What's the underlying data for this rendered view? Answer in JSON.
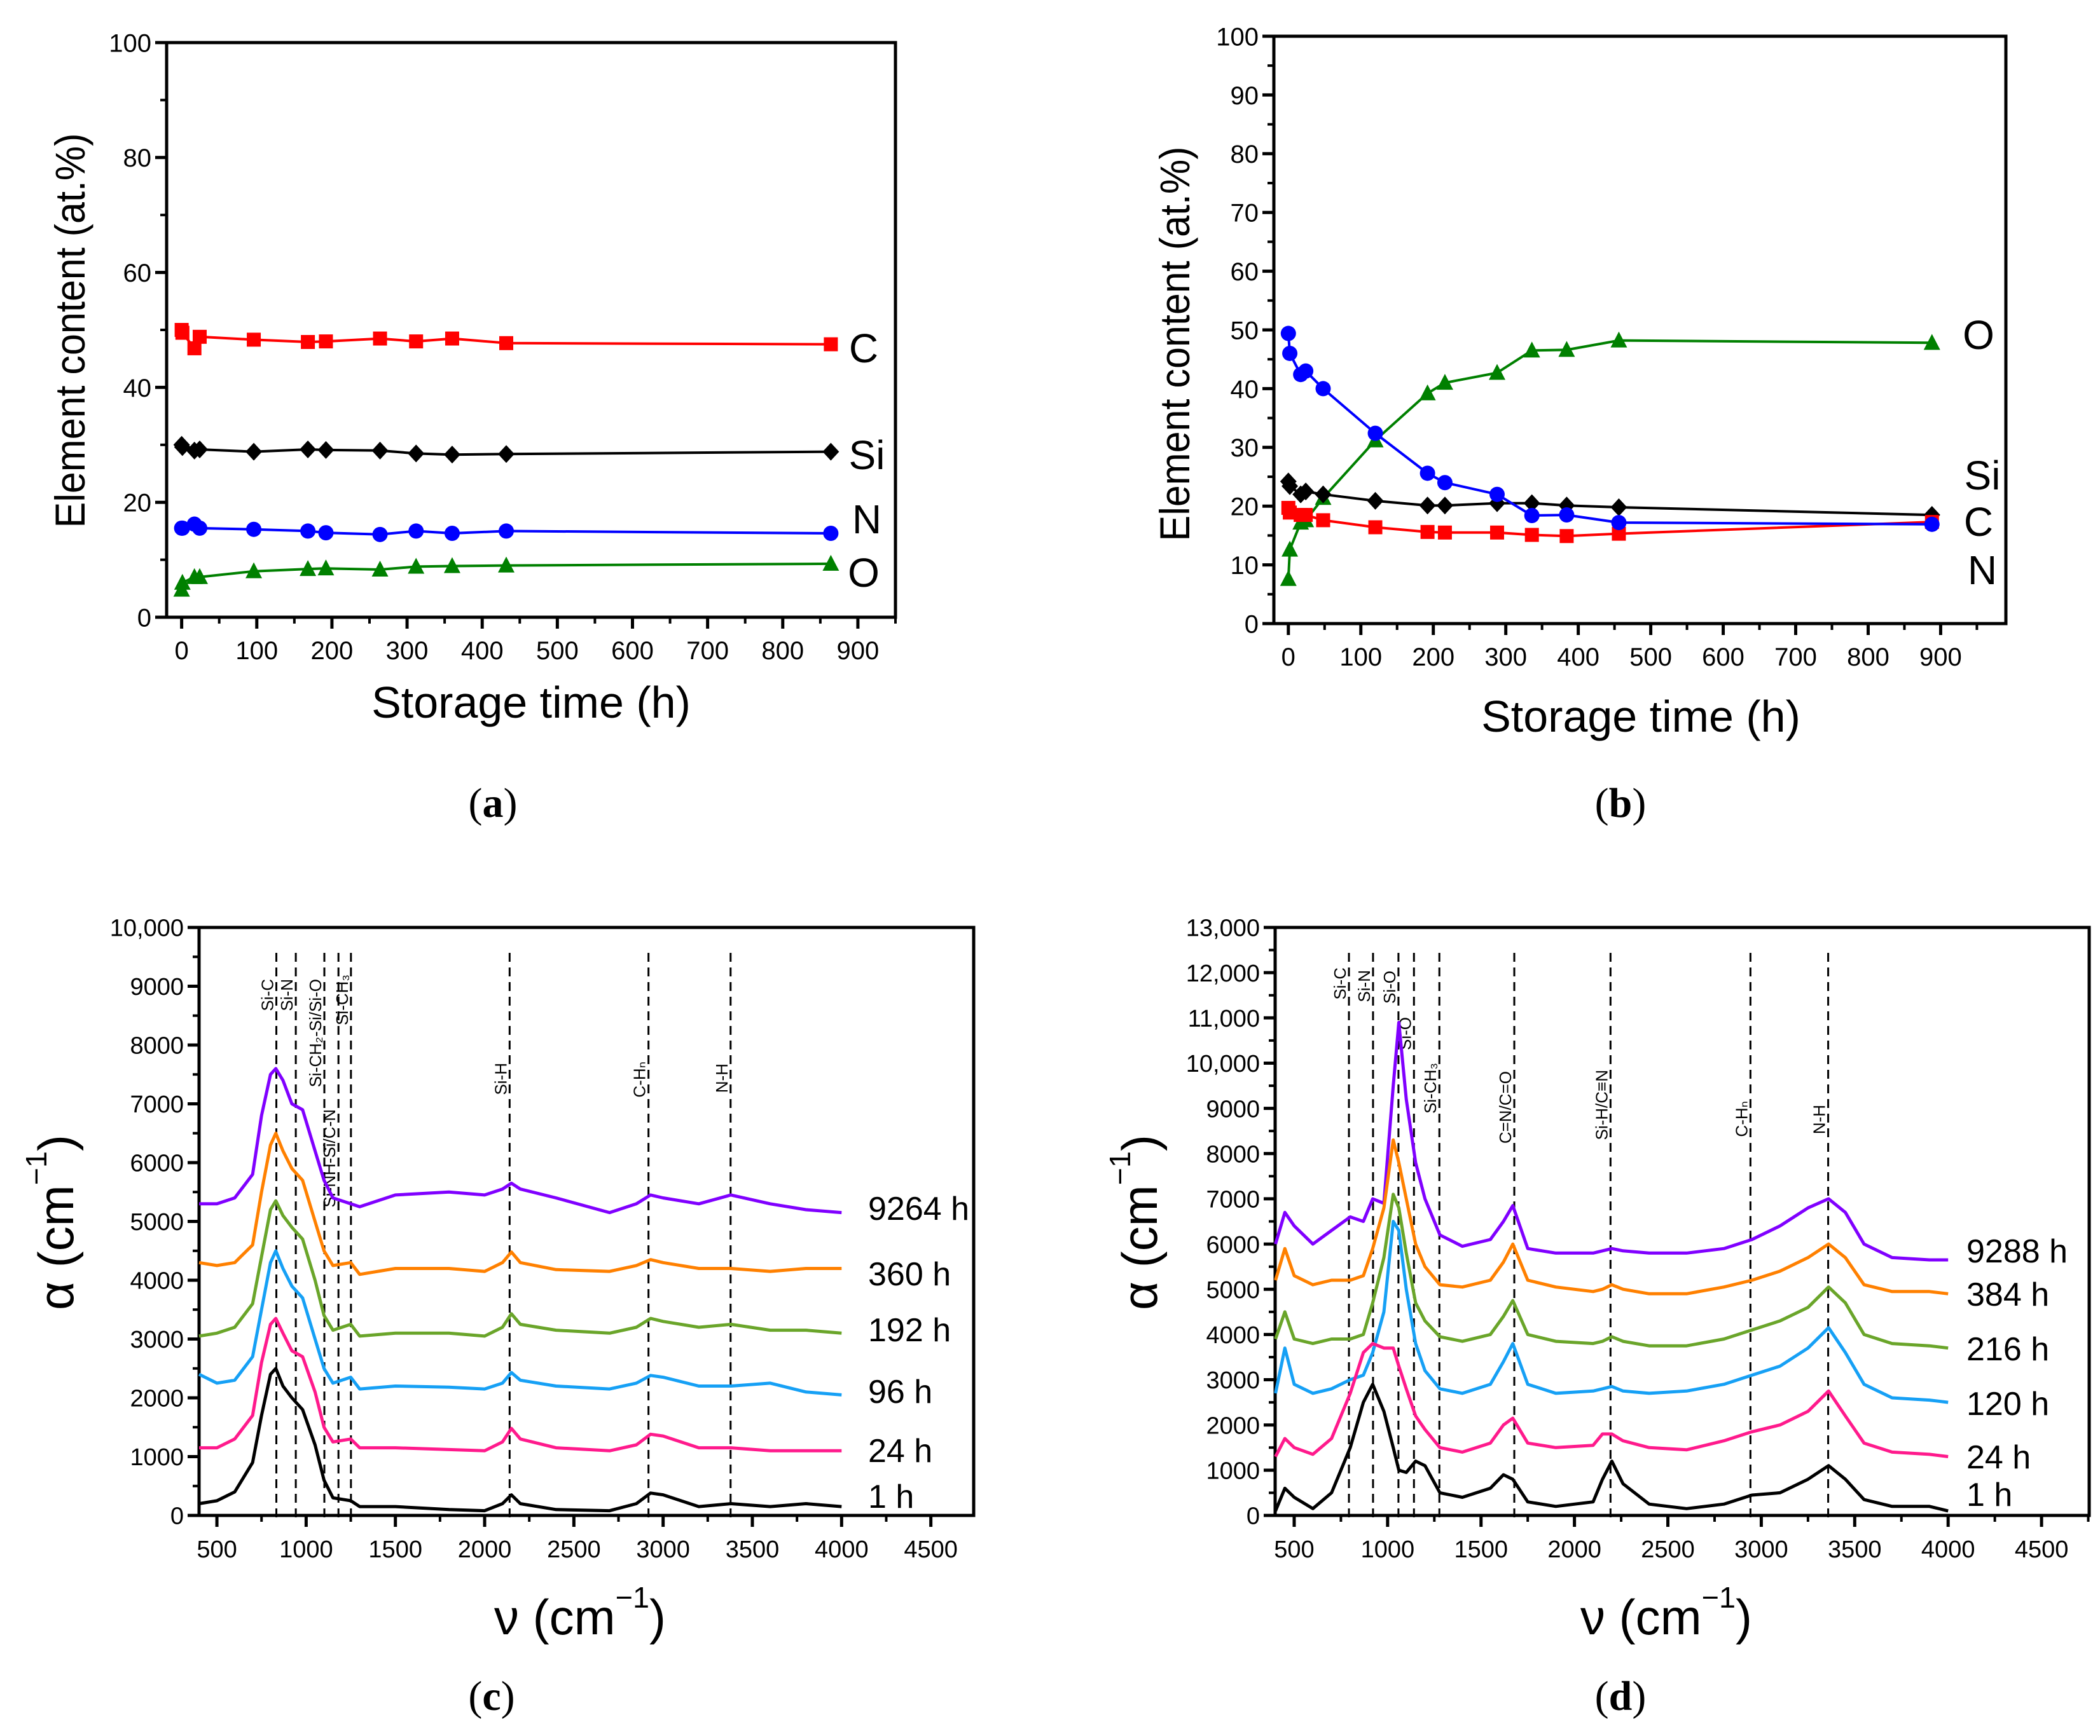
{
  "chart_data": [
    {
      "type": "line",
      "panel_label": [
        "(",
        "a",
        ")"
      ],
      "xlabel": "Storage time (h)",
      "ylabel": "Element content (at.%)",
      "xlim": [
        -20,
        950
      ],
      "ylim": [
        0,
        100
      ],
      "xticks": [
        0,
        100,
        200,
        300,
        400,
        500,
        600,
        700,
        800,
        900
      ],
      "xtick_labels": [
        "0",
        "100",
        "200",
        "300",
        "400",
        "500",
        "600",
        "700",
        "800",
        "900"
      ],
      "xminor": 50,
      "yticks": [
        0,
        20,
        40,
        60,
        80,
        100
      ],
      "ytick_labels": [
        "0",
        "20",
        "40",
        "60",
        "80",
        "100"
      ],
      "yminor": 10,
      "series": [
        {
          "name": "C",
          "color": "#ff0000",
          "marker": "square",
          "x": [
            0,
            1,
            17,
            24,
            96,
            168,
            192,
            264,
            312,
            360,
            432,
            864
          ],
          "y": [
            50.0,
            49.5,
            46.8,
            48.8,
            48.3,
            47.9,
            48.0,
            48.5,
            48.0,
            48.5,
            47.7,
            47.5
          ]
        },
        {
          "name": "Si",
          "color": "#000000",
          "marker": "diamond",
          "x": [
            0,
            1,
            17,
            24,
            96,
            168,
            192,
            264,
            312,
            360,
            432,
            864
          ],
          "y": [
            30.0,
            29.6,
            29.0,
            29.2,
            28.8,
            29.2,
            29.1,
            29.0,
            28.5,
            28.3,
            28.4,
            28.8
          ]
        },
        {
          "name": "N",
          "color": "#0000ff",
          "marker": "circle",
          "x": [
            0,
            1,
            17,
            24,
            96,
            168,
            192,
            264,
            312,
            360,
            432,
            864
          ],
          "y": [
            15.5,
            15.5,
            16.2,
            15.5,
            15.3,
            15.0,
            14.7,
            14.4,
            15.0,
            14.6,
            15.0,
            14.6
          ]
        },
        {
          "name": "O",
          "color": "#008000",
          "marker": "triangle",
          "x": [
            0,
            1,
            17,
            24,
            96,
            168,
            192,
            264,
            312,
            360,
            432,
            864
          ],
          "y": [
            4.8,
            6.0,
            7.0,
            7.0,
            8.0,
            8.4,
            8.5,
            8.3,
            8.8,
            8.9,
            9.0,
            9.3
          ]
        }
      ]
    },
    {
      "type": "line",
      "panel_label": [
        "(",
        "b",
        ")"
      ],
      "xlabel": "Storage time (h)",
      "ylabel": "Element content (at.%)",
      "xlim": [
        -20,
        990
      ],
      "ylim": [
        0,
        100
      ],
      "xticks": [
        0,
        100,
        200,
        300,
        400,
        500,
        600,
        700,
        800,
        900
      ],
      "xtick_labels": [
        "0",
        "100",
        "200",
        "300",
        "400",
        "500",
        "600",
        "700",
        "800",
        "900"
      ],
      "xminor": 50,
      "yticks": [
        0,
        10,
        20,
        30,
        40,
        50,
        60,
        70,
        80,
        90,
        100
      ],
      "ytick_labels": [
        "0",
        "10",
        "20",
        "30",
        "40",
        "50",
        "60",
        "70",
        "80",
        "90",
        "100"
      ],
      "yminor": 5,
      "series": [
        {
          "name": "O",
          "color": "#008000",
          "marker": "triangle",
          "x": [
            0,
            2,
            17,
            24,
            48,
            120,
            192,
            216,
            288,
            336,
            384,
            456,
            888
          ],
          "y": [
            7.6,
            12.6,
            17.2,
            17.6,
            21.4,
            31.2,
            39.2,
            41.0,
            42.7,
            46.5,
            46.6,
            48.2,
            47.8
          ]
        },
        {
          "name": "Si",
          "color": "#000000",
          "marker": "diamond",
          "x": [
            0,
            2,
            17,
            24,
            48,
            120,
            192,
            216,
            288,
            336,
            384,
            456,
            888
          ],
          "y": [
            24.2,
            23.4,
            22.0,
            22.5,
            22.0,
            20.9,
            20.1,
            20.1,
            20.5,
            20.5,
            20.1,
            19.8,
            18.5
          ]
        },
        {
          "name": "C",
          "color": "#ff0000",
          "marker": "square",
          "x": [
            0,
            2,
            17,
            24,
            48,
            120,
            192,
            216,
            288,
            336,
            384,
            456,
            888
          ],
          "y": [
            19.7,
            18.9,
            18.5,
            18.5,
            17.6,
            16.4,
            15.6,
            15.5,
            15.5,
            15.1,
            14.9,
            15.3,
            17.3
          ]
        },
        {
          "name": "N",
          "color": "#0000ff",
          "marker": "circle",
          "x": [
            0,
            2,
            17,
            24,
            48,
            120,
            192,
            216,
            288,
            336,
            384,
            456,
            888
          ],
          "y": [
            49.4,
            46.0,
            42.4,
            43.0,
            40.0,
            32.4,
            25.6,
            24.0,
            22.0,
            18.4,
            18.5,
            17.2,
            16.9
          ]
        }
      ]
    },
    {
      "type": "line",
      "panel_label": [
        "(",
        "c",
        ")"
      ],
      "xlabel_parts": [
        "ν (cm",
        "−1",
        ")"
      ],
      "ylabel_parts": [
        "α (cm",
        "−1",
        ")"
      ],
      "xlim": [
        400,
        4740
      ],
      "ylim": [
        0,
        10000
      ],
      "xticks": [
        500,
        1000,
        1500,
        2000,
        2500,
        3000,
        3500,
        4000,
        4500
      ],
      "xtick_labels": [
        "500",
        "1000",
        "1500",
        "2000",
        "2500",
        "3000",
        "3500",
        "4000",
        "4500"
      ],
      "xminor": 250,
      "yticks": [
        0,
        1000,
        2000,
        3000,
        4000,
        5000,
        6000,
        7000,
        8000,
        9000,
        10000
      ],
      "ytick_labels": [
        "0",
        "1000",
        "2000",
        "3000",
        "4000",
        "5000",
        "6000",
        "7000",
        "8000",
        "9000",
        "10,000"
      ],
      "yminor": 500,
      "bands": [
        {
          "label": "Si-C",
          "x": 833
        },
        {
          "label": "Si-N",
          "x": 942
        },
        {
          "label": "Si-CH₂-Si/Si-O",
          "x": 1102
        },
        {
          "label": "Si-NH-Si/C-N",
          "x": 1181
        },
        {
          "label": "Si-CH₃",
          "x": 1251
        },
        {
          "label": "Si-H",
          "x": 2140
        },
        {
          "label": "C-Hₙ",
          "x": 2918
        },
        {
          "label": "N-H",
          "x": 3378
        }
      ],
      "x": [
        400,
        500,
        600,
        700,
        750,
        800,
        830,
        870,
        920,
        980,
        1050,
        1100,
        1150,
        1250,
        1300,
        1500,
        1800,
        2000,
        2100,
        2150,
        2200,
        2400,
        2700,
        2850,
        2930,
        3000,
        3200,
        3380,
        3600,
        3800,
        4000
      ],
      "series": [
        {
          "name": "9264 h",
          "color": "#8000ff",
          "y": [
            5300,
            5300,
            5400,
            5800,
            6800,
            7500,
            7600,
            7400,
            7000,
            6900,
            6200,
            5700,
            5400,
            5300,
            5250,
            5450,
            5500,
            5450,
            5550,
            5650,
            5550,
            5400,
            5150,
            5300,
            5450,
            5400,
            5300,
            5450,
            5300,
            5200,
            5150
          ]
        },
        {
          "name": "360 h",
          "color": "#ff8000",
          "y": [
            4300,
            4250,
            4300,
            4600,
            5500,
            6300,
            6500,
            6200,
            5900,
            5700,
            5000,
            4500,
            4250,
            4300,
            4100,
            4200,
            4200,
            4150,
            4300,
            4480,
            4300,
            4180,
            4150,
            4250,
            4350,
            4300,
            4200,
            4200,
            4150,
            4200,
            4200
          ]
        },
        {
          "name": "192 h",
          "color": "#6aa52a",
          "y": [
            3050,
            3100,
            3200,
            3600,
            4400,
            5200,
            5350,
            5100,
            4900,
            4700,
            4000,
            3400,
            3150,
            3250,
            3050,
            3100,
            3100,
            3050,
            3200,
            3430,
            3250,
            3150,
            3100,
            3200,
            3350,
            3300,
            3200,
            3250,
            3150,
            3150,
            3100
          ]
        },
        {
          "name": "96 h",
          "color": "#16a0f5",
          "y": [
            2400,
            2250,
            2300,
            2700,
            3500,
            4300,
            4500,
            4200,
            3900,
            3700,
            3000,
            2500,
            2250,
            2350,
            2150,
            2200,
            2180,
            2150,
            2250,
            2430,
            2300,
            2200,
            2150,
            2250,
            2380,
            2350,
            2200,
            2200,
            2250,
            2100,
            2050
          ]
        },
        {
          "name": "24 h",
          "color": "#ff1a8c",
          "y": [
            1150,
            1150,
            1300,
            1700,
            2600,
            3250,
            3350,
            3100,
            2800,
            2700,
            2100,
            1500,
            1250,
            1300,
            1150,
            1150,
            1120,
            1100,
            1250,
            1480,
            1300,
            1150,
            1100,
            1200,
            1380,
            1350,
            1150,
            1150,
            1100,
            1100,
            1100
          ]
        },
        {
          "name": "1 h",
          "color": "#000000",
          "y": [
            200,
            250,
            400,
            900,
            1700,
            2400,
            2500,
            2200,
            2000,
            1800,
            1200,
            600,
            300,
            250,
            150,
            150,
            100,
            80,
            200,
            350,
            200,
            100,
            80,
            200,
            380,
            350,
            150,
            200,
            150,
            200,
            150
          ]
        }
      ]
    },
    {
      "type": "line",
      "panel_label": [
        "(",
        "d",
        ")"
      ],
      "xlabel_parts": [
        "ν (cm",
        "−1",
        ")"
      ],
      "ylabel_parts": [
        "α (cm",
        "−1",
        ")"
      ],
      "xlim": [
        398,
        4755
      ],
      "ylim": [
        0,
        13000
      ],
      "xticks": [
        500,
        1000,
        1500,
        2000,
        2500,
        3000,
        3500,
        4000,
        4500
      ],
      "xtick_labels": [
        "500",
        "1000",
        "1500",
        "2000",
        "2500",
        "3000",
        "3500",
        "4000",
        "4500"
      ],
      "xminor": 250,
      "yticks": [
        0,
        1000,
        2000,
        3000,
        4000,
        5000,
        6000,
        7000,
        8000,
        9000,
        10000,
        11000,
        12000,
        13000
      ],
      "ytick_labels": [
        "0",
        "1000",
        "2000",
        "3000",
        "4000",
        "5000",
        "6000",
        "7000",
        "8000",
        "9000",
        "10,000",
        "11,000",
        "12,000",
        "13,000"
      ],
      "yminor": 500,
      "bands": [
        {
          "label": "Si-C",
          "x": 793
        },
        {
          "label": "Si-N",
          "x": 922
        },
        {
          "label": "Si-O",
          "x": 1058
        },
        {
          "label": "Si-O",
          "x": 1141
        },
        {
          "label": "Si-CH₃",
          "x": 1277
        },
        {
          "label": "C=N/C=O",
          "x": 1678
        },
        {
          "label": "Si-H/C≡N",
          "x": 2193
        },
        {
          "label": "C-Hₙ",
          "x": 2942
        },
        {
          "label": "N-H",
          "x": 3358
        }
      ],
      "x": [
        400,
        450,
        500,
        600,
        700,
        800,
        870,
        920,
        980,
        1030,
        1060,
        1100,
        1150,
        1200,
        1280,
        1400,
        1550,
        1620,
        1670,
        1750,
        1900,
        2100,
        2150,
        2200,
        2260,
        2400,
        2600,
        2800,
        2950,
        3100,
        3250,
        3360,
        3450,
        3550,
        3700,
        3900,
        4000
      ],
      "series": [
        {
          "name": "9288 h",
          "color": "#8000ff",
          "y": [
            6000,
            6700,
            6400,
            6000,
            6300,
            6600,
            6500,
            7000,
            6900,
            9500,
            10900,
            9200,
            7800,
            7000,
            6200,
            5950,
            6100,
            6500,
            6850,
            5900,
            5800,
            5800,
            5850,
            5900,
            5850,
            5800,
            5800,
            5900,
            6100,
            6400,
            6800,
            7000,
            6700,
            6000,
            5700,
            5650,
            5650
          ]
        },
        {
          "name": "384 h",
          "color": "#ff8000",
          "y": [
            5200,
            5900,
            5300,
            5100,
            5200,
            5200,
            5300,
            5900,
            6800,
            8300,
            7800,
            7000,
            6000,
            5500,
            5100,
            5050,
            5200,
            5600,
            6000,
            5200,
            5050,
            4950,
            5000,
            5100,
            5000,
            4900,
            4900,
            5050,
            5200,
            5400,
            5700,
            6000,
            5700,
            5100,
            4950,
            4950,
            4900
          ]
        },
        {
          "name": "216 h",
          "color": "#6aa52a",
          "y": [
            3900,
            4500,
            3900,
            3800,
            3900,
            3900,
            4000,
            4700,
            5700,
            7100,
            6800,
            5800,
            4700,
            4300,
            3950,
            3850,
            4000,
            4400,
            4750,
            4000,
            3850,
            3800,
            3850,
            3950,
            3850,
            3750,
            3750,
            3900,
            4100,
            4300,
            4600,
            5050,
            4700,
            4000,
            3800,
            3750,
            3700
          ]
        },
        {
          "name": "120 h",
          "color": "#16a0f5",
          "y": [
            2700,
            3700,
            2900,
            2700,
            2800,
            3000,
            3100,
            3600,
            4500,
            6500,
            6300,
            5000,
            3800,
            3200,
            2800,
            2700,
            2900,
            3400,
            3800,
            2900,
            2700,
            2750,
            2800,
            2850,
            2750,
            2700,
            2750,
            2900,
            3100,
            3300,
            3700,
            4150,
            3600,
            2900,
            2600,
            2550,
            2500
          ]
        },
        {
          "name": "24 h",
          "color": "#ff1a8c",
          "y": [
            1300,
            1700,
            1500,
            1350,
            1700,
            2700,
            3600,
            3800,
            3700,
            3700,
            3300,
            2800,
            2200,
            1900,
            1500,
            1400,
            1600,
            2000,
            2150,
            1600,
            1500,
            1550,
            1800,
            1800,
            1650,
            1500,
            1450,
            1650,
            1850,
            2000,
            2300,
            2750,
            2200,
            1600,
            1400,
            1350,
            1300
          ]
        },
        {
          "name": "1 h",
          "color": "#000000",
          "y": [
            100,
            600,
            400,
            150,
            500,
            1500,
            2500,
            2900,
            2300,
            1500,
            1000,
            950,
            1200,
            1100,
            500,
            400,
            600,
            900,
            800,
            300,
            200,
            300,
            800,
            1200,
            700,
            250,
            150,
            250,
            450,
            500,
            800,
            1100,
            800,
            350,
            200,
            200,
            100
          ]
        }
      ]
    }
  ]
}
